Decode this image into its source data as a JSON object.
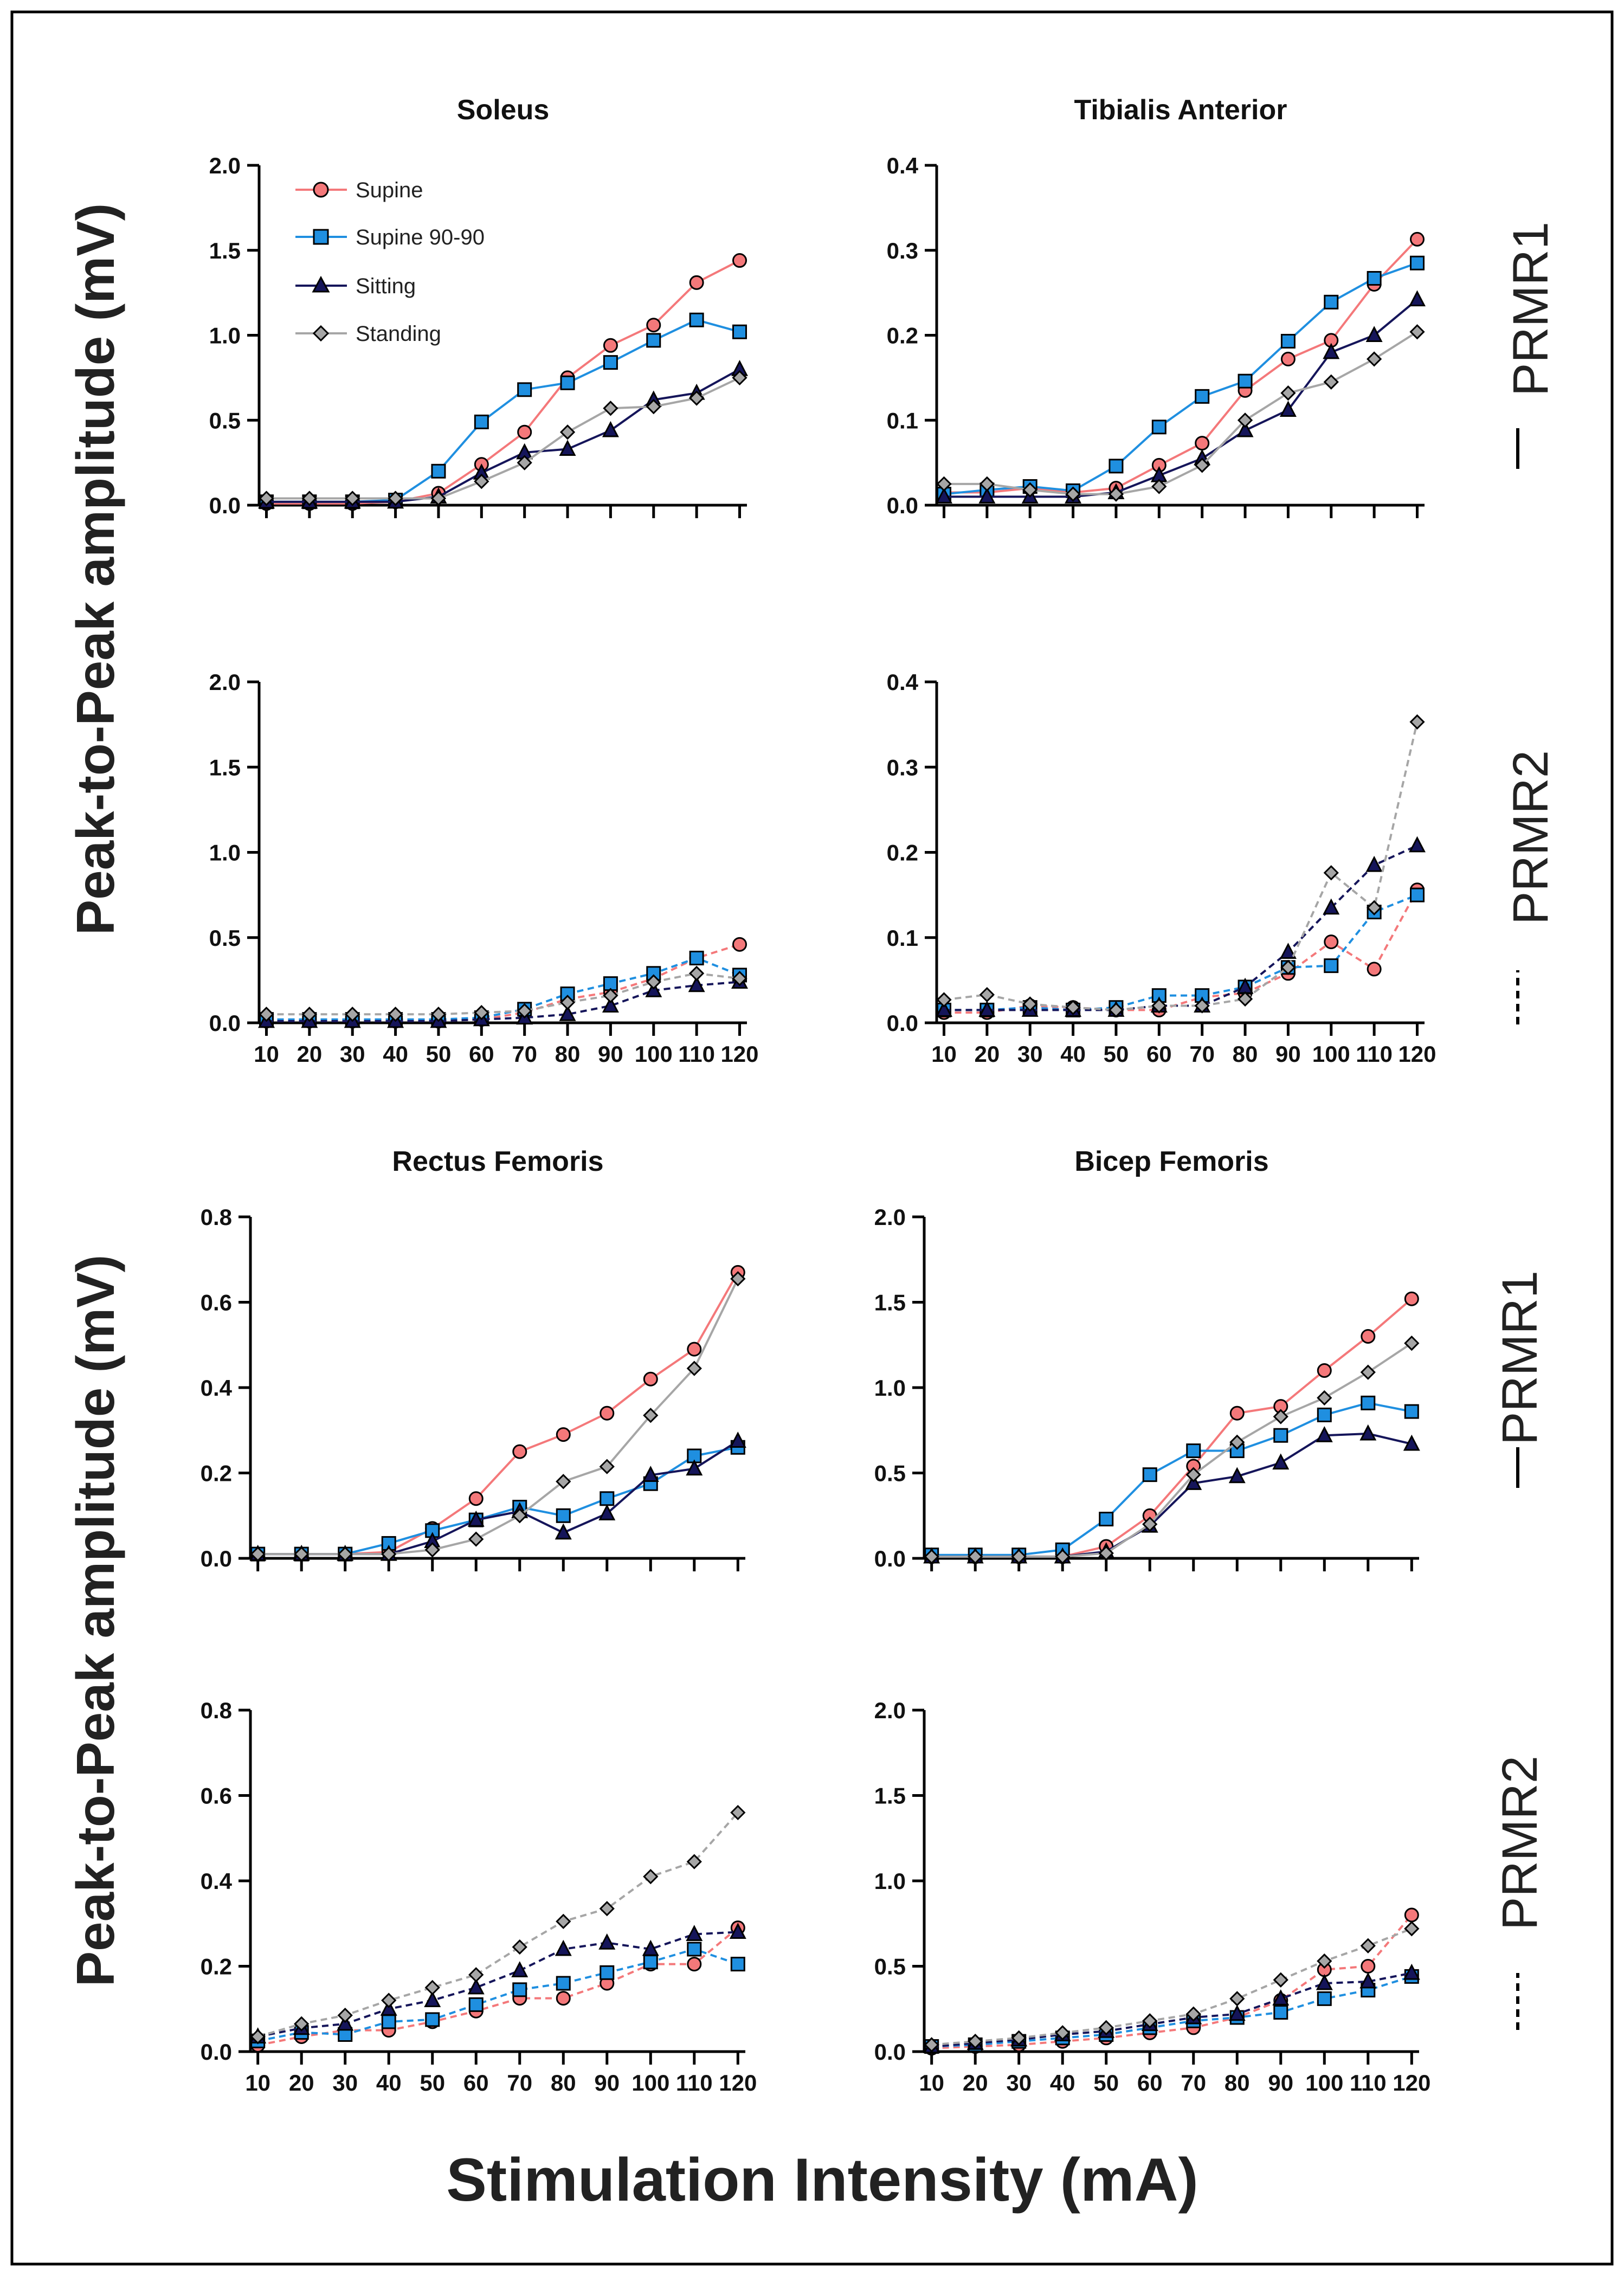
{
  "figure": {
    "ylabel": "Peak-to-Peak amplitude (mV)",
    "xlabel": "Stimulation Intensity (mA)",
    "side_labels": [
      "PRMR1",
      "PRMR2",
      "PRMR1",
      "PRMR2"
    ],
    "legend": [
      "Supine",
      "Supine 90-90",
      "Sitting",
      "Standing"
    ]
  },
  "colors": {
    "supine": "#f4787a",
    "supine9090": "#1f8fe0",
    "sitting": "#15155a",
    "standing": "#a6a6a6",
    "frame": "#000000"
  },
  "chart_data": [
    {
      "id": "soleus-prmr1",
      "type": "line",
      "title": "Soleus",
      "response": "PRMR1",
      "line_style": "solid",
      "categories": [
        "10",
        "20",
        "30",
        "40",
        "50",
        "60",
        "70",
        "80",
        "90",
        "100",
        "110",
        "120"
      ],
      "ylim": [
        0,
        2.0
      ],
      "yticks": [
        "0.0",
        "0.5",
        "1.0",
        "1.5",
        "2.0"
      ],
      "show_xticklabels": false,
      "series": [
        {
          "name": "Supine",
          "values": [
            0.01,
            0.01,
            0.01,
            0.02,
            0.07,
            0.24,
            0.43,
            0.75,
            0.94,
            1.06,
            1.31,
            1.44
          ]
        },
        {
          "name": "Supine 90-90",
          "values": [
            0.02,
            0.02,
            0.02,
            0.03,
            0.2,
            0.49,
            0.68,
            0.72,
            0.84,
            0.97,
            1.09,
            1.02
          ]
        },
        {
          "name": "Sitting",
          "values": [
            0.02,
            0.02,
            0.02,
            0.02,
            0.05,
            0.19,
            0.31,
            0.33,
            0.44,
            0.62,
            0.66,
            0.8
          ]
        },
        {
          "name": "Standing",
          "values": [
            0.04,
            0.04,
            0.04,
            0.04,
            0.04,
            0.14,
            0.25,
            0.43,
            0.57,
            0.58,
            0.63,
            0.75
          ]
        }
      ]
    },
    {
      "id": "tibialis-prmr1",
      "type": "line",
      "title": "Tibialis Anterior",
      "response": "PRMR1",
      "line_style": "solid",
      "categories": [
        "10",
        "20",
        "30",
        "40",
        "50",
        "60",
        "70",
        "80",
        "90",
        "100",
        "110",
        "120"
      ],
      "ylim": [
        0,
        0.4
      ],
      "yticks": [
        "0.0",
        "0.1",
        "0.2",
        "0.3",
        "0.4"
      ],
      "show_xticklabels": false,
      "series": [
        {
          "name": "Supine",
          "values": [
            0.015,
            0.015,
            0.02,
            0.015,
            0.02,
            0.047,
            0.073,
            0.135,
            0.172,
            0.194,
            0.26,
            0.313
          ]
        },
        {
          "name": "Supine 90-90",
          "values": [
            0.013,
            0.018,
            0.022,
            0.017,
            0.046,
            0.092,
            0.128,
            0.146,
            0.193,
            0.239,
            0.267,
            0.285
          ]
        },
        {
          "name": "Sitting",
          "values": [
            0.01,
            0.01,
            0.01,
            0.01,
            0.015,
            0.035,
            0.055,
            0.088,
            0.112,
            0.18,
            0.2,
            0.242
          ]
        },
        {
          "name": "Standing",
          "values": [
            0.025,
            0.025,
            0.018,
            0.013,
            0.013,
            0.022,
            0.047,
            0.1,
            0.132,
            0.145,
            0.172,
            0.204
          ]
        }
      ]
    },
    {
      "id": "soleus-prmr2",
      "type": "line",
      "title": "",
      "response": "PRMR2",
      "line_style": "dashed",
      "categories": [
        "10",
        "20",
        "30",
        "40",
        "50",
        "60",
        "70",
        "80",
        "90",
        "100",
        "110",
        "120"
      ],
      "ylim": [
        0,
        2.0
      ],
      "yticks": [
        "0.0",
        "0.5",
        "1.0",
        "1.5",
        "2.0"
      ],
      "show_xticklabels": true,
      "series": [
        {
          "name": "Supine",
          "values": [
            0.01,
            0.01,
            0.01,
            0.01,
            0.01,
            0.02,
            0.06,
            0.14,
            0.18,
            0.26,
            0.38,
            0.46
          ]
        },
        {
          "name": "Supine 90-90",
          "values": [
            0.02,
            0.02,
            0.02,
            0.02,
            0.02,
            0.03,
            0.08,
            0.17,
            0.23,
            0.29,
            0.38,
            0.28
          ]
        },
        {
          "name": "Sitting",
          "values": [
            0.01,
            0.01,
            0.01,
            0.01,
            0.01,
            0.02,
            0.03,
            0.05,
            0.1,
            0.19,
            0.22,
            0.24
          ]
        },
        {
          "name": "Standing",
          "values": [
            0.05,
            0.05,
            0.05,
            0.05,
            0.05,
            0.06,
            0.07,
            0.12,
            0.16,
            0.24,
            0.29,
            0.26
          ]
        }
      ]
    },
    {
      "id": "tibialis-prmr2",
      "type": "line",
      "title": "",
      "response": "PRMR2",
      "line_style": "dashed",
      "categories": [
        "10",
        "20",
        "30",
        "40",
        "50",
        "60",
        "70",
        "80",
        "90",
        "100",
        "110",
        "120"
      ],
      "ylim": [
        0,
        0.4
      ],
      "yticks": [
        "0.0",
        "0.1",
        "0.2",
        "0.3",
        "0.4"
      ],
      "show_xticklabels": true,
      "series": [
        {
          "name": "Supine",
          "values": [
            0.012,
            0.012,
            0.02,
            0.018,
            0.015,
            0.015,
            0.03,
            0.035,
            0.058,
            0.095,
            0.063,
            0.156
          ]
        },
        {
          "name": "Supine 90-90",
          "values": [
            0.015,
            0.015,
            0.018,
            0.015,
            0.018,
            0.032,
            0.032,
            0.042,
            0.065,
            0.067,
            0.13,
            0.15
          ]
        },
        {
          "name": "Sitting",
          "values": [
            0.015,
            0.015,
            0.015,
            0.015,
            0.015,
            0.02,
            0.02,
            0.042,
            0.083,
            0.135,
            0.185,
            0.208
          ]
        },
        {
          "name": "Standing",
          "values": [
            0.027,
            0.033,
            0.022,
            0.018,
            0.015,
            0.02,
            0.02,
            0.028,
            0.065,
            0.176,
            0.135,
            0.353
          ]
        }
      ]
    },
    {
      "id": "rectus-prmr1",
      "type": "line",
      "title": "Rectus Femoris",
      "response": "PRMR1",
      "line_style": "solid",
      "categories": [
        "10",
        "20",
        "30",
        "40",
        "50",
        "60",
        "70",
        "80",
        "90",
        "100",
        "110",
        "120"
      ],
      "ylim": [
        0,
        0.8
      ],
      "yticks": [
        "0.0",
        "0.2",
        "0.4",
        "0.6",
        "0.8"
      ],
      "show_xticklabels": false,
      "series": [
        {
          "name": "Supine",
          "values": [
            0.01,
            0.01,
            0.01,
            0.015,
            0.07,
            0.14,
            0.25,
            0.29,
            0.34,
            0.42,
            0.49,
            0.67
          ]
        },
        {
          "name": "Supine 90-90",
          "values": [
            0.01,
            0.01,
            0.01,
            0.035,
            0.065,
            0.09,
            0.12,
            0.1,
            0.14,
            0.175,
            0.24,
            0.26
          ]
        },
        {
          "name": "Sitting",
          "values": [
            0.01,
            0.01,
            0.01,
            0.01,
            0.04,
            0.09,
            0.11,
            0.06,
            0.105,
            0.195,
            0.21,
            0.275
          ]
        },
        {
          "name": "Standing",
          "values": [
            0.01,
            0.01,
            0.01,
            0.01,
            0.02,
            0.045,
            0.1,
            0.18,
            0.215,
            0.335,
            0.445,
            0.655
          ]
        }
      ]
    },
    {
      "id": "bicep-prmr1",
      "type": "line",
      "title": "Bicep Femoris",
      "response": "PRMR1",
      "line_style": "solid",
      "categories": [
        "10",
        "20",
        "30",
        "40",
        "50",
        "60",
        "70",
        "80",
        "90",
        "100",
        "110",
        "120"
      ],
      "ylim": [
        0,
        2.0
      ],
      "yticks": [
        "0.0",
        "0.5",
        "1.0",
        "1.5",
        "2.0"
      ],
      "show_xticklabels": false,
      "series": [
        {
          "name": "Supine",
          "values": [
            0.01,
            0.01,
            0.01,
            0.01,
            0.07,
            0.25,
            0.54,
            0.85,
            0.89,
            1.1,
            1.3,
            1.52
          ]
        },
        {
          "name": "Supine 90-90",
          "values": [
            0.02,
            0.02,
            0.02,
            0.05,
            0.23,
            0.49,
            0.63,
            0.63,
            0.72,
            0.84,
            0.91,
            0.86
          ]
        },
        {
          "name": "Sitting",
          "values": [
            0.01,
            0.01,
            0.01,
            0.01,
            0.04,
            0.19,
            0.44,
            0.48,
            0.56,
            0.72,
            0.73,
            0.67
          ]
        },
        {
          "name": "Standing",
          "values": [
            0.01,
            0.01,
            0.01,
            0.01,
            0.03,
            0.2,
            0.49,
            0.68,
            0.83,
            0.94,
            1.09,
            1.26
          ]
        }
      ]
    },
    {
      "id": "rectus-prmr2",
      "type": "line",
      "title": "",
      "response": "PRMR2",
      "line_style": "dashed",
      "categories": [
        "10",
        "20",
        "30",
        "40",
        "50",
        "60",
        "70",
        "80",
        "90",
        "100",
        "110",
        "120"
      ],
      "ylim": [
        0,
        0.8
      ],
      "yticks": [
        "0.0",
        "0.2",
        "0.4",
        "0.6",
        "0.8"
      ],
      "show_xticklabels": true,
      "series": [
        {
          "name": "Supine",
          "values": [
            0.015,
            0.035,
            0.05,
            0.05,
            0.07,
            0.095,
            0.125,
            0.125,
            0.16,
            0.205,
            0.205,
            0.29
          ]
        },
        {
          "name": "Supine 90-90",
          "values": [
            0.025,
            0.045,
            0.04,
            0.07,
            0.075,
            0.11,
            0.145,
            0.16,
            0.185,
            0.21,
            0.24,
            0.205
          ]
        },
        {
          "name": "Sitting",
          "values": [
            0.035,
            0.055,
            0.065,
            0.1,
            0.12,
            0.15,
            0.19,
            0.24,
            0.255,
            0.24,
            0.275,
            0.28
          ]
        },
        {
          "name": "Standing",
          "values": [
            0.035,
            0.065,
            0.085,
            0.12,
            0.15,
            0.18,
            0.245,
            0.305,
            0.335,
            0.41,
            0.445,
            0.56
          ]
        }
      ]
    },
    {
      "id": "bicep-prmr2",
      "type": "line",
      "title": "",
      "response": "PRMR2",
      "line_style": "dashed",
      "categories": [
        "10",
        "20",
        "30",
        "40",
        "50",
        "60",
        "70",
        "80",
        "90",
        "100",
        "110",
        "120"
      ],
      "ylim": [
        0,
        2.0
      ],
      "yticks": [
        "0.0",
        "0.5",
        "1.0",
        "1.5",
        "2.0"
      ],
      "show_xticklabels": true,
      "series": [
        {
          "name": "Supine",
          "values": [
            0.02,
            0.03,
            0.04,
            0.06,
            0.08,
            0.11,
            0.14,
            0.2,
            0.3,
            0.48,
            0.5,
            0.8
          ]
        },
        {
          "name": "Supine 90-90",
          "values": [
            0.03,
            0.04,
            0.06,
            0.08,
            0.1,
            0.14,
            0.18,
            0.2,
            0.23,
            0.31,
            0.36,
            0.44
          ]
        },
        {
          "name": "Sitting",
          "values": [
            0.03,
            0.05,
            0.07,
            0.1,
            0.12,
            0.16,
            0.2,
            0.22,
            0.31,
            0.4,
            0.41,
            0.46
          ]
        },
        {
          "name": "Standing",
          "values": [
            0.04,
            0.06,
            0.08,
            0.11,
            0.14,
            0.18,
            0.22,
            0.31,
            0.42,
            0.53,
            0.62,
            0.72
          ]
        }
      ]
    }
  ]
}
